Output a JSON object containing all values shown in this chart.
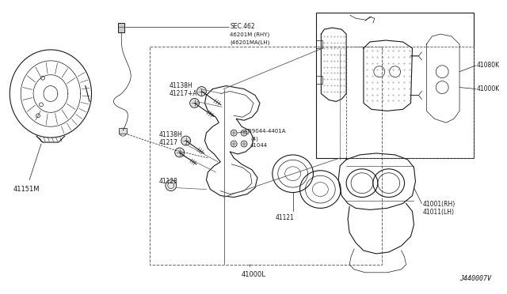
{
  "background_color": "#ffffff",
  "line_color": "#1a1a1a",
  "diagram_id": "J440007V",
  "labels": {
    "41151M": "41151M",
    "SEC462": "SEC.462\n46201M (RHY)\n(46201MA(LH)",
    "41138H_top": "41138H",
    "41217A": "41217+A",
    "41138H_bot": "41138H",
    "41217": "41217",
    "41128": "41128",
    "DB044": "Ⓓ09044-4401A\n   (4)\n   41044",
    "41121": "41121",
    "41080K": "41080K",
    "41000K": "41000K",
    "41001": "41001(RH)\n41011(LH)",
    "41000L": "41000L"
  }
}
